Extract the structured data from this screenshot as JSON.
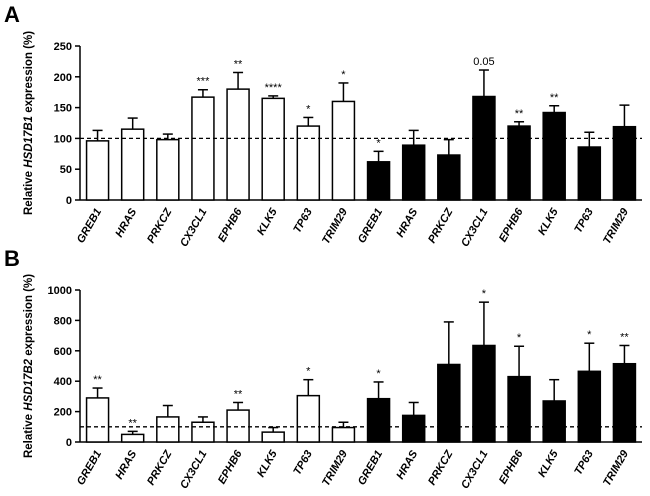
{
  "chart_data": [
    {
      "panel": "A",
      "type": "bar",
      "ylabel_prefix": "Relative ",
      "ylabel_gene": "HSD17B1",
      "ylabel_suffix": " expression (%)",
      "ylim": [
        0,
        250
      ],
      "yticks": [
        0,
        50,
        100,
        150,
        200,
        250
      ],
      "reference_line": 100,
      "categories": [
        "GREB1",
        "HRAS",
        "PRKCZ",
        "CX3CL1",
        "EPHB6",
        "KLK5",
        "TP63",
        "TRIM29",
        "GREB1",
        "HRAS",
        "PRKCZ",
        "CX3CL1",
        "EPHB6",
        "KLK5",
        "TP63",
        "TRIM29"
      ],
      "fills": [
        "white",
        "white",
        "white",
        "white",
        "white",
        "white",
        "white",
        "white",
        "black",
        "black",
        "black",
        "black",
        "black",
        "black",
        "black",
        "black"
      ],
      "values": [
        96,
        115,
        98,
        167,
        180,
        165,
        120,
        160,
        62,
        89,
        73,
        168,
        120,
        142,
        86,
        119
      ],
      "errors": [
        17,
        18,
        9,
        12,
        27,
        4,
        14,
        30,
        17,
        24,
        25,
        43,
        7,
        11,
        24,
        35
      ],
      "annotations": [
        "",
        "",
        "",
        "***",
        "**",
        "****",
        "*",
        "*",
        "*",
        "",
        "",
        "0.05",
        "**",
        "**",
        "",
        ""
      ]
    },
    {
      "panel": "B",
      "type": "bar",
      "ylabel_prefix": "Relative ",
      "ylabel_gene": "HSD17B2",
      "ylabel_suffix": " expression (%)",
      "ylim": [
        0,
        1000
      ],
      "yticks": [
        0,
        200,
        400,
        600,
        800,
        1000
      ],
      "reference_line": 100,
      "categories": [
        "GREB1",
        "HRAS",
        "PRKCZ",
        "CX3CL1",
        "EPHB6",
        "KLK5",
        "TP63",
        "TRIM29",
        "GREB1",
        "HRAS",
        "PRKCZ",
        "CX3CL1",
        "EPHB6",
        "KLK5",
        "TP63",
        "TRIM29"
      ],
      "fills": [
        "white",
        "white",
        "white",
        "white",
        "white",
        "white",
        "white",
        "white",
        "black",
        "black",
        "black",
        "black",
        "black",
        "black",
        "black",
        "black"
      ],
      "values": [
        290,
        50,
        165,
        130,
        210,
        65,
        305,
        95,
        285,
        175,
        510,
        635,
        430,
        270,
        465,
        515
      ],
      "errors": [
        65,
        20,
        75,
        35,
        50,
        30,
        105,
        35,
        110,
        85,
        280,
        285,
        200,
        140,
        185,
        120
      ],
      "annotations": [
        "**",
        "**",
        "",
        "",
        "**",
        "",
        "*",
        "",
        "*",
        "",
        "",
        "*",
        "*",
        "",
        "*",
        "**"
      ]
    }
  ]
}
